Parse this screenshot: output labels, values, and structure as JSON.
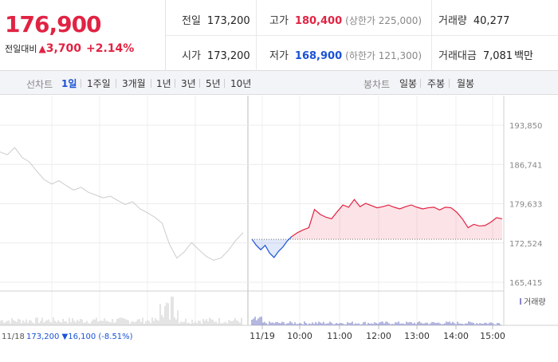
{
  "price": {
    "current": "176,900",
    "change_label": "전일대비",
    "change_arrow": "▲",
    "change_value": "3,700",
    "change_pct": "+2.14%"
  },
  "stats": {
    "prev_close": {
      "label": "전일",
      "value": "173,200"
    },
    "open": {
      "label": "시가",
      "value": "173,200"
    },
    "high": {
      "label": "고가",
      "value": "180,400",
      "limit_label": "(상한가 225,000)"
    },
    "low": {
      "label": "저가",
      "value": "168,900",
      "limit_label": "(하한가 121,300)"
    },
    "volume": {
      "label": "거래량",
      "value": "40,277"
    },
    "amount": {
      "label": "거래대금",
      "value": "7,081",
      "unit": "백만"
    }
  },
  "tabs": {
    "line_label": "선차트",
    "line_tabs": [
      "1일",
      "1주일",
      "3개월",
      "1년",
      "3년",
      "5년",
      "10년"
    ],
    "active": "1일",
    "candle_label": "봉차트",
    "candle_tabs": [
      "일봉",
      "주봉",
      "월봉"
    ]
  },
  "colors": {
    "up": "#e12343",
    "down": "#1a52d6",
    "prev": "#cccccc"
  },
  "chart_data": {
    "type": "line",
    "y_ticks": [
      "193,850",
      "186,741",
      "179,633",
      "172,524",
      "165,415"
    ],
    "ylim": [
      165415,
      193850
    ],
    "baseline": 173200,
    "x_ticks": [
      "11/19",
      "10:00",
      "11:00",
      "12:00",
      "13:00",
      "14:00",
      "15:00"
    ],
    "prev_day_label": "11/18",
    "prev_day_close": "173,200",
    "prev_day_change": "▼16,100",
    "prev_day_pct": "(-8.51%)",
    "volume_label": "거래량",
    "series": [
      {
        "values": [
          189000,
          188500,
          189800,
          188000,
          187200,
          185500,
          184000,
          183200,
          183800,
          182900,
          182100,
          182600,
          181700,
          181200,
          180700,
          181000,
          180200,
          179500,
          180000,
          178700,
          178000,
          177200,
          176100,
          172300,
          169800,
          170900,
          172600,
          171300,
          170100,
          169400,
          169800,
          171200,
          173000,
          174400
        ]
      },
      {
        "values": [
          173200,
          172100,
          171300,
          172100,
          170700,
          169900,
          171000,
          171800,
          172900,
          173700
        ]
      },
      {
        "values": [
          173700,
          174400,
          174900,
          175300,
          178600,
          177700,
          177200,
          176900,
          178200,
          179400,
          179000,
          180400,
          179100,
          179700,
          179300,
          178900,
          179100,
          179400,
          179000,
          178700,
          179100,
          179400,
          179000,
          178700,
          178900,
          179000,
          178500,
          179000,
          178900,
          178100,
          176900,
          175300,
          175900,
          175600,
          175700,
          176300,
          177100,
          176900
        ]
      }
    ]
  }
}
